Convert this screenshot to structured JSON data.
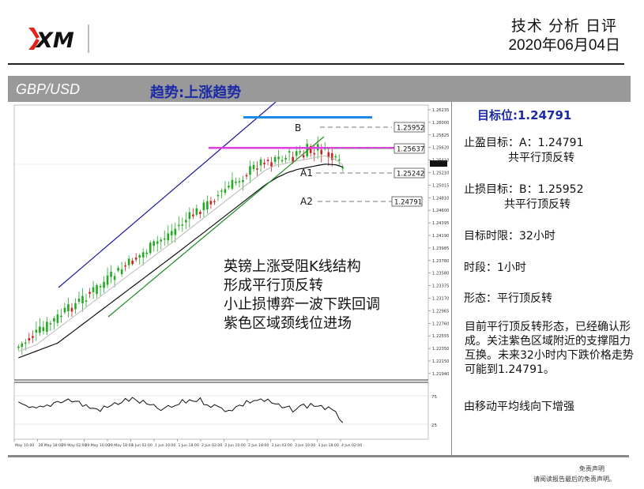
{
  "header": {
    "logo_text": "XM",
    "title": "技术 分析 日评",
    "date": "2020年06月04日"
  },
  "band": {
    "pair": "GBP/USD",
    "trend": "趋势:上涨趋势"
  },
  "chart": {
    "price_labels": [
      "1.26235",
      "1.26000",
      "1.25825",
      "1.25620",
      "1.25410",
      "1.25210",
      "1.25015",
      "1.24810",
      "1.24600",
      "1.24395",
      "1.24190",
      "1.23985",
      "1.23780",
      "1.23580",
      "1.23375",
      "1.23170",
      "1.22965",
      "1.22760",
      "1.22555",
      "1.22350",
      "1.22150",
      "1.21940"
    ],
    "level_boxes": [
      "1.25952",
      "1.25637",
      "1.25242",
      "1.24791"
    ],
    "annotations": [
      "B",
      "A1",
      "A2"
    ],
    "osc_labels": [
      "75",
      "25"
    ],
    "x_labels": [
      "May 10:00",
      "28 May 18:00",
      "29 May 02:00",
      "29 May 10:00",
      "29 May 18:00",
      "1 Jun 02:00",
      "1 Jun 10:00",
      "1 Jun 18:00",
      "2 Jun 02:00",
      "2 Jun 10:00",
      "2 Jun 18:00",
      "3 Jun 02:00",
      "3 Jun 10:00",
      "3 Jun 18:00",
      "4 Jun 02:00"
    ],
    "overlay_lines": [
      "英镑上涨受阻K线结构",
      "形成平行顶反转",
      "小止损博弈一波下跌回调",
      "紫色区域颈线位进场"
    ]
  },
  "panel": {
    "target": "目标位:1.24791",
    "tp_line1": "止盈目标：A：1.24791",
    "tp_line2": "共平行顶反转",
    "sl_line1": "止损目标：B：1.25952",
    "sl_line2": "共平行顶反转",
    "time_limit": "目标时限：32小时",
    "period": "时段：1小时",
    "pattern": "形态：平行顶反转",
    "description": "目前平行顶反转形态，已经确认形成。关注紫色区域附近的支撑阻力互换。未来32小时内下跌价格走势可能到1.24791。",
    "note": "由移动平均线向下增强"
  },
  "footer": {
    "line1": "免责声明",
    "line2": "请阅读报告最后的免责声明。"
  },
  "colors": {
    "band": "#999999",
    "trend_text": "#1a2aa8",
    "resistance": "#1e88e5",
    "neckline": "#e040e0",
    "bull": "#22aa22",
    "bear": "#cc2222",
    "channel": "#1a1aa0",
    "ma_green": "#22aa22",
    "ma_black": "#111111"
  }
}
